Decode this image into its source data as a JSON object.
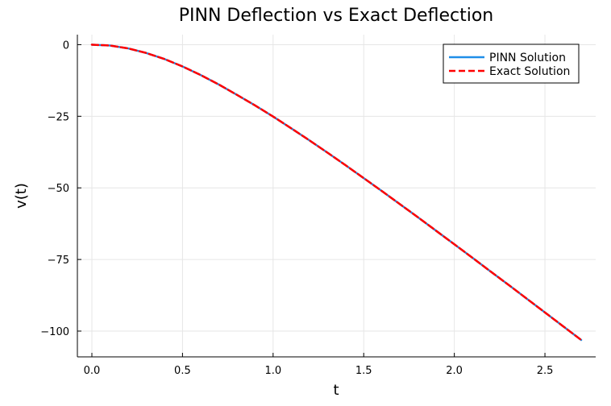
{
  "chart_data": {
    "type": "line",
    "title": "PINN Deflection vs Exact Deflection",
    "xlabel": "t",
    "ylabel": "v(t)",
    "xlim": [
      -0.08,
      2.78
    ],
    "ylim": [
      -109,
      3.5
    ],
    "xticks": [
      0.0,
      0.5,
      1.0,
      1.5,
      2.0,
      2.5
    ],
    "xtick_labels": [
      "0.0",
      "0.5",
      "1.0",
      "1.5",
      "2.0",
      "2.5"
    ],
    "yticks": [
      0,
      -25,
      -50,
      -75,
      -100
    ],
    "ytick_labels": [
      "0",
      "−25",
      "−50",
      "−75",
      "−100"
    ],
    "grid": true,
    "legend_position": "top-right",
    "series": [
      {
        "name": "PINN Solution",
        "color": "#1f8ee8",
        "style": "solid",
        "x": [
          0.0,
          0.1,
          0.2,
          0.3,
          0.4,
          0.5,
          0.6,
          0.7,
          0.8,
          0.9,
          1.0,
          1.1,
          1.2,
          1.3,
          1.4,
          1.5,
          1.6,
          1.7,
          1.8,
          1.9,
          2.0,
          2.1,
          2.2,
          2.3,
          2.4,
          2.5,
          2.6,
          2.7
        ],
        "y": [
          0.0,
          -0.3,
          -1.3,
          -2.9,
          -5.0,
          -7.6,
          -10.6,
          -13.9,
          -17.5,
          -21.2,
          -25.1,
          -29.2,
          -33.4,
          -37.7,
          -42.1,
          -46.6,
          -51.1,
          -55.7,
          -60.3,
          -65.0,
          -69.7,
          -74.4,
          -79.2,
          -83.9,
          -88.7,
          -93.5,
          -98.3,
          -103.1
        ]
      },
      {
        "name": "Exact Solution",
        "color": "#ff0000",
        "style": "dashed",
        "x": [
          0.0,
          0.1,
          0.2,
          0.3,
          0.4,
          0.5,
          0.6,
          0.7,
          0.8,
          0.9,
          1.0,
          1.1,
          1.2,
          1.3,
          1.4,
          1.5,
          1.6,
          1.7,
          1.8,
          1.9,
          2.0,
          2.1,
          2.2,
          2.3,
          2.4,
          2.5,
          2.6,
          2.7
        ],
        "y": [
          0.0,
          -0.3,
          -1.3,
          -2.9,
          -5.0,
          -7.6,
          -10.6,
          -13.9,
          -17.5,
          -21.2,
          -25.1,
          -29.2,
          -33.4,
          -37.7,
          -42.1,
          -46.6,
          -51.1,
          -55.7,
          -60.3,
          -65.0,
          -69.7,
          -74.4,
          -79.2,
          -83.9,
          -88.7,
          -93.5,
          -98.3,
          -103.1
        ]
      }
    ]
  }
}
